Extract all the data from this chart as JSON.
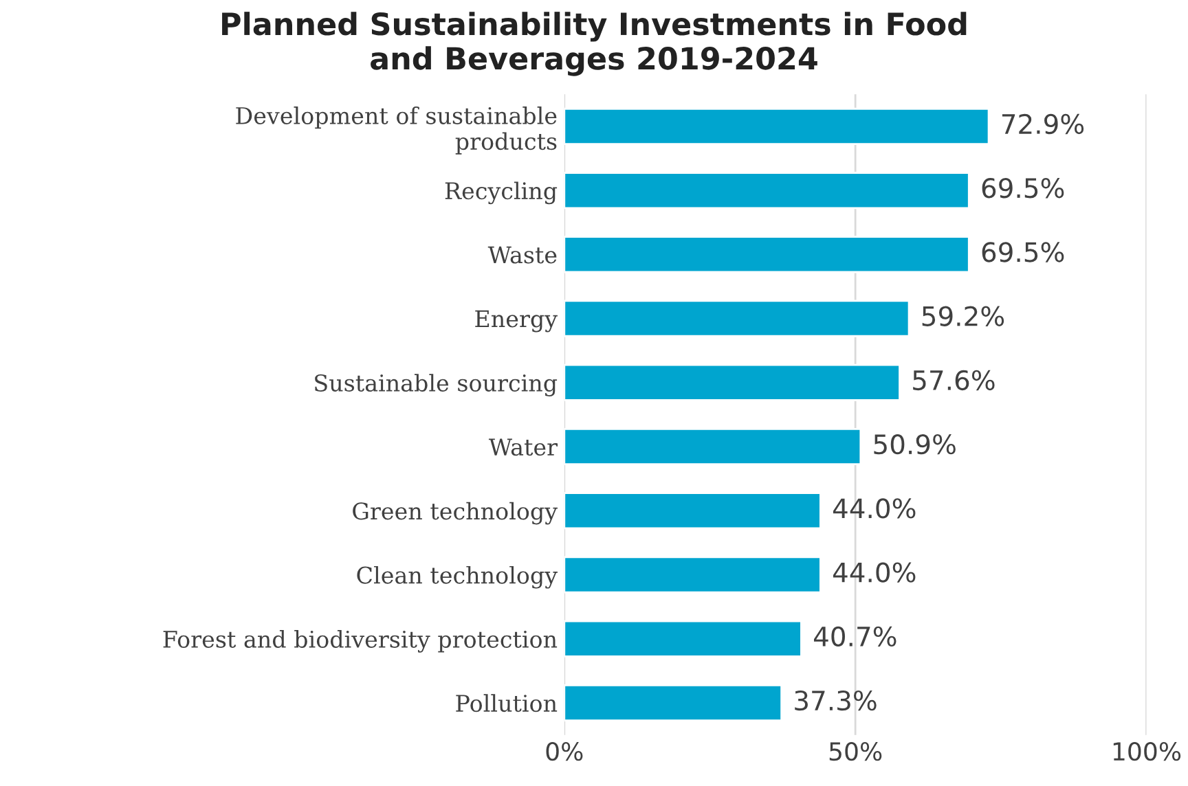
{
  "chart_data": {
    "type": "bar",
    "orientation": "horizontal",
    "title": "Planned Sustainability Investments in Food\nand Beverages 2019-2024",
    "categories": [
      "Development of sustainable\nproducts",
      "Recycling",
      "Waste",
      "Energy",
      "Sustainable sourcing",
      "Water",
      "Green technology",
      "Clean technology",
      "Forest and biodiversity protection",
      "Pollution"
    ],
    "values": [
      72.9,
      69.5,
      69.5,
      59.2,
      57.6,
      50.9,
      44.0,
      44.0,
      40.7,
      37.3
    ],
    "value_labels": [
      "72.9%",
      "69.5%",
      "69.5%",
      "59.2%",
      "57.6%",
      "50.9%",
      "44.0%",
      "44.0%",
      "40.7%",
      "37.3%"
    ],
    "color": "#00a5cf",
    "xlim": [
      0,
      100
    ],
    "xticks": [
      {
        "value": 0,
        "label": "0%"
      },
      {
        "value": 50,
        "label": "50%"
      },
      {
        "value": 100,
        "label": "100%"
      }
    ],
    "grid": "x"
  }
}
